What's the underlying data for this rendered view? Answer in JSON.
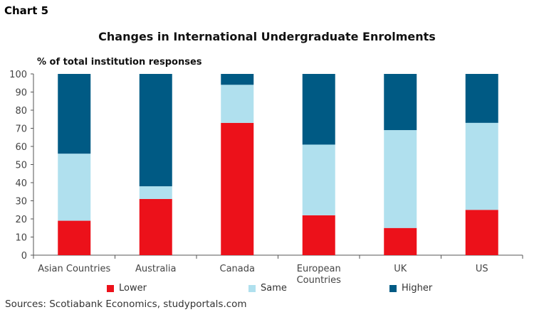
{
  "chart_number": "Chart 5",
  "source": "Sources: Scotiabank Economics, studyportals.com",
  "chart_data": {
    "type": "bar",
    "stacked": true,
    "title": "Changes in International Undergraduate Enrolments",
    "ylabel": "% of total institution responses",
    "xlabel": "",
    "ylim": [
      0,
      100
    ],
    "yticks": [
      0,
      10,
      20,
      30,
      40,
      50,
      60,
      70,
      80,
      90,
      100
    ],
    "grid": false,
    "legend_position": "bottom",
    "categories": [
      "Asian Countries",
      "Australia",
      "Canada",
      "European Countries",
      "UK",
      "US"
    ],
    "series": [
      {
        "name": "Lower",
        "color": "#ec111a",
        "values": [
          19,
          31,
          73,
          22,
          15,
          25
        ]
      },
      {
        "name": "Same",
        "color": "#b0e0ee",
        "values": [
          37,
          7,
          21,
          39,
          54,
          48
        ]
      },
      {
        "name": "Higher",
        "color": "#005a84",
        "values": [
          44,
          62,
          6,
          39,
          31,
          27
        ]
      }
    ]
  }
}
